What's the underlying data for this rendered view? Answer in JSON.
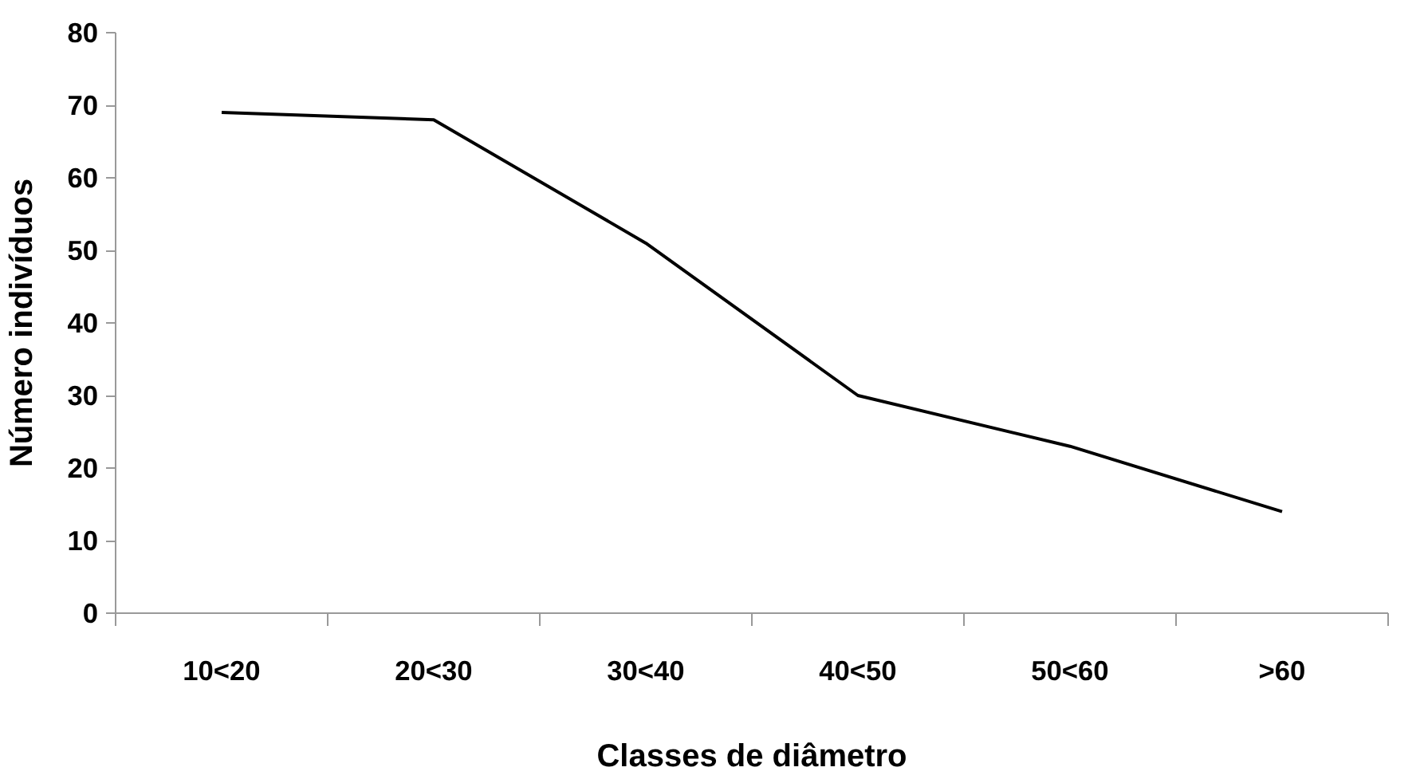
{
  "chart_data": {
    "type": "line",
    "xlabel": "Classes de diâmetro",
    "ylabel": "Número indivíduos",
    "categories": [
      "10<20",
      "20<30",
      "30<40",
      "40<50",
      "50<60",
      ">60"
    ],
    "series": [
      {
        "color": "#000000",
        "values": [
          69,
          68,
          51,
          30,
          23,
          14
        ]
      }
    ],
    "ylim": [
      0,
      80
    ],
    "yticks": [
      0,
      10,
      20,
      30,
      40,
      50,
      60,
      70,
      80
    ],
    "grid": false
  }
}
